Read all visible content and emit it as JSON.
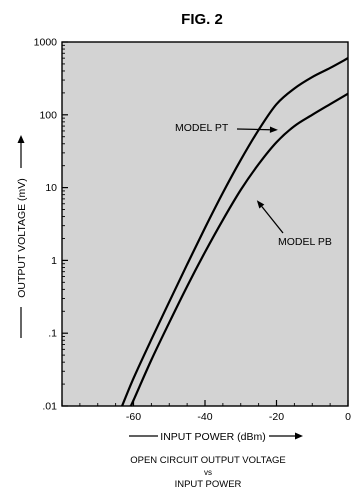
{
  "figure": {
    "title": "FIG. 2",
    "caption_line1": "OPEN CIRCUIT OUTPUT VOLTAGE",
    "caption_line2": "vs",
    "caption_line3": "INPUT POWER"
  },
  "chart_data": {
    "type": "line",
    "xlabel": "INPUT POWER (dBm)",
    "ylabel": "OUTPUT VOLTAGE (mV)",
    "xlim": [
      -80,
      0
    ],
    "ylim": [
      0.01,
      1000
    ],
    "yscale": "log",
    "x_ticks": [
      -60,
      -40,
      -20,
      0
    ],
    "x_tick_labels": [
      "-60",
      "-40",
      "-20",
      "0"
    ],
    "y_ticks": [
      0.01,
      0.1,
      1,
      10,
      100,
      1000
    ],
    "y_tick_labels": [
      ".01",
      ".1",
      "1",
      "10",
      "100",
      "1000"
    ],
    "plot_background": "#d3d3d3",
    "line_color": "#000000",
    "grid": false,
    "series": [
      {
        "name": "MODEL PT",
        "x": [
          -63.2,
          -60,
          -55,
          -50,
          -45,
          -40,
          -35,
          -30,
          -25,
          -20,
          -15,
          -10,
          -5,
          0
        ],
        "y": [
          0.01,
          0.024,
          0.082,
          0.27,
          0.88,
          2.8,
          8.5,
          24,
          62,
          140,
          230,
          330,
          440,
          600
        ]
      },
      {
        "name": "MODEL PB",
        "x": [
          -60.8,
          -60,
          -55,
          -50,
          -45,
          -40,
          -35,
          -30,
          -25,
          -20,
          -15,
          -10,
          -5,
          0
        ],
        "y": [
          0.01,
          0.012,
          0.043,
          0.14,
          0.44,
          1.3,
          3.6,
          9.3,
          21,
          42,
          70,
          100,
          140,
          195
        ]
      }
    ],
    "annotations": [
      {
        "text": "MODEL PT",
        "series": "MODEL PT",
        "at_x": -19.6,
        "at_y": 62
      },
      {
        "text": "MODEL PB",
        "series": "MODEL PB",
        "at_x": -25.5,
        "at_y": 6.7
      }
    ]
  }
}
